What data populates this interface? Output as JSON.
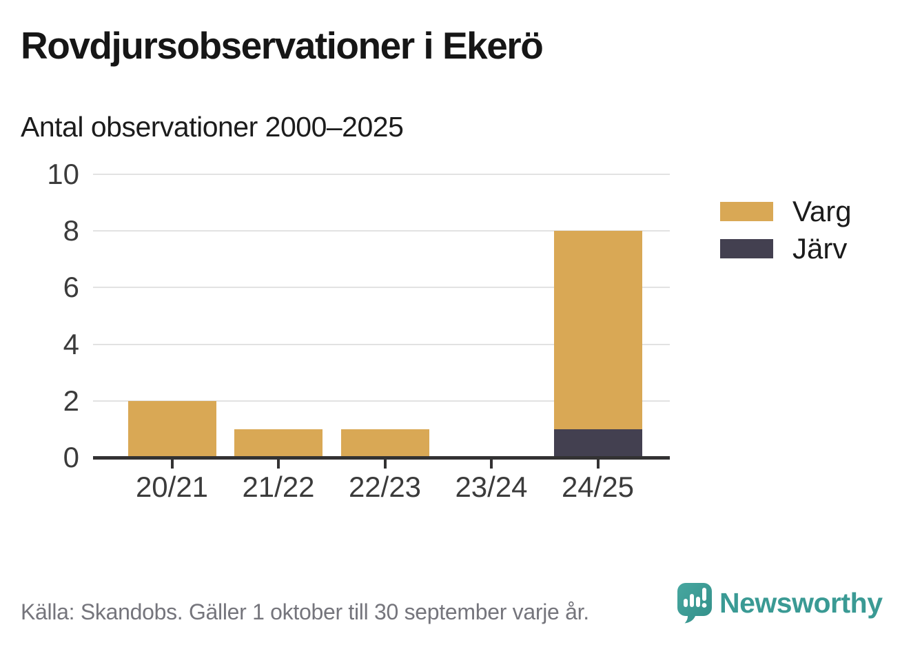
{
  "header": {
    "title": "Rovdjursobservationer i Ekerö",
    "subtitle": "Antal observationer 2000–2025"
  },
  "chart_data": {
    "type": "bar",
    "stacked": true,
    "title": "Rovdjursobservationer i Ekerö",
    "subtitle": "Antal observationer 2000–2025",
    "categories": [
      "20/21",
      "21/22",
      "22/23",
      "23/24",
      "24/25"
    ],
    "series": [
      {
        "name": "Varg",
        "color": "#D9A855",
        "values": [
          2,
          1,
          1,
          0,
          7
        ]
      },
      {
        "name": "Järv",
        "color": "#434050",
        "values": [
          0,
          0,
          0,
          0,
          1
        ]
      }
    ],
    "stack_order_bottom_to_top": [
      "Järv",
      "Varg"
    ],
    "ylim": [
      0,
      10
    ],
    "yticks": [
      0,
      2,
      4,
      6,
      8,
      10
    ],
    "xlabel": "",
    "ylabel": "",
    "grid": true,
    "legend_position": "right"
  },
  "footer": {
    "source": "Källa: Skandobs. Gäller 1 oktober till 30 september varje år.",
    "brand": "Newsworthy",
    "brand_color": "#3A9A94"
  },
  "colors": {
    "varg_gold": "#D9A855",
    "jarv_dark": "#434050",
    "gridline": "#E2E2E2",
    "axis": "#333233",
    "brand_teal": "#40A09A"
  }
}
